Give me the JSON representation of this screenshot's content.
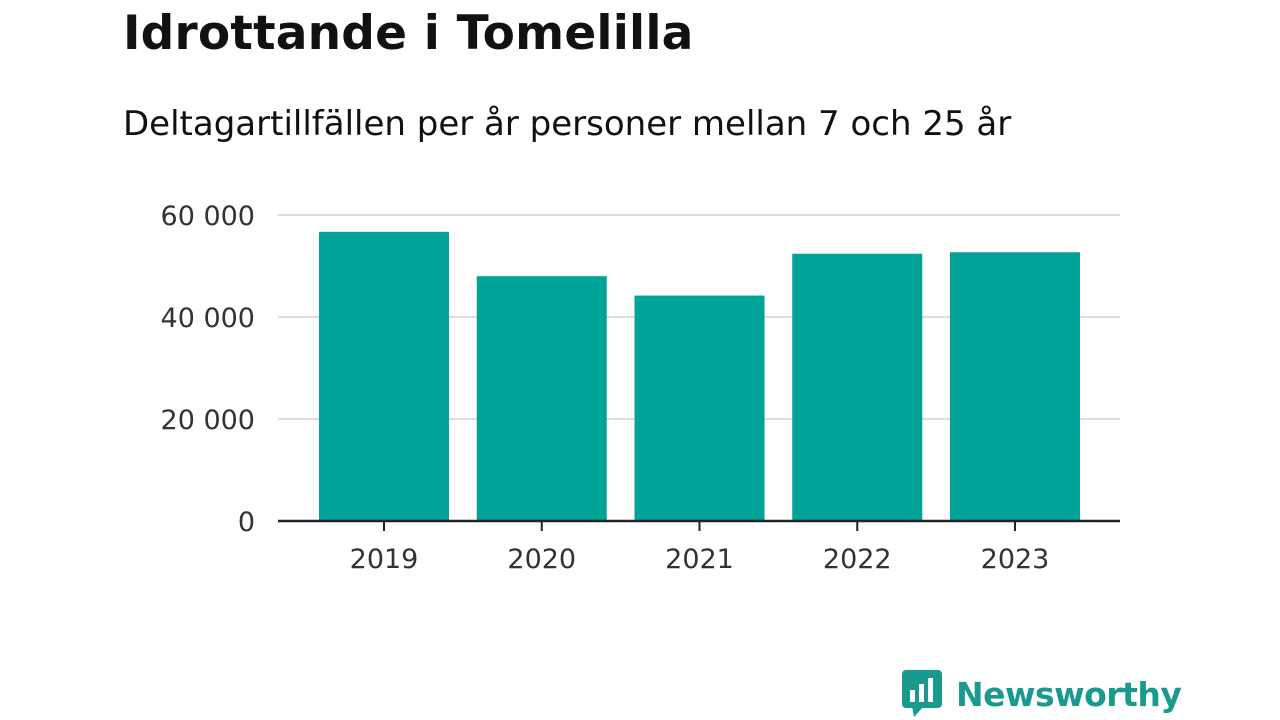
{
  "chart_data": {
    "type": "bar",
    "title": "Idrottande i Tomelilla",
    "subtitle": "Deltagartillfällen per år personer mellan 7 och 25 år",
    "xlabel": "",
    "ylabel": "",
    "categories": [
      "2019",
      "2020",
      "2021",
      "2022",
      "2023"
    ],
    "values": [
      56700,
      48000,
      44200,
      52400,
      52700
    ],
    "ylim": [
      0,
      60000
    ],
    "yticks": [
      0,
      20000,
      40000,
      60000
    ],
    "ytick_labels": [
      "0",
      "20 000",
      "40 000",
      "60 000"
    ],
    "grid": true,
    "legend": "none",
    "bar_color": "#00a398"
  },
  "branding": {
    "logo_text": "Newsworthy",
    "logo_icon": "bar-chart-speech-bubble-icon",
    "logo_color": "#1a9a8e"
  }
}
